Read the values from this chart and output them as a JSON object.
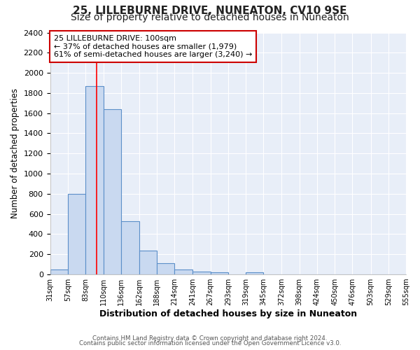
{
  "title": "25, LILLEBURNE DRIVE, NUNEATON, CV10 9SE",
  "subtitle": "Size of property relative to detached houses in Nuneaton",
  "xlabel": "Distribution of detached houses by size in Nuneaton",
  "ylabel": "Number of detached properties",
  "bin_edges": [
    31,
    57,
    83,
    110,
    136,
    162,
    188,
    214,
    241,
    267,
    293,
    319,
    345,
    372,
    398,
    424,
    450,
    476,
    503,
    529,
    555
  ],
  "bar_heights": [
    50,
    800,
    1870,
    1640,
    530,
    235,
    110,
    50,
    30,
    20,
    0,
    20,
    0,
    0,
    0,
    0,
    0,
    0,
    0,
    0
  ],
  "bar_color": "#c9d9f0",
  "bar_edge_color": "#5b8fc9",
  "red_line_x": 100,
  "ylim": [
    0,
    2400
  ],
  "yticks": [
    0,
    200,
    400,
    600,
    800,
    1000,
    1200,
    1400,
    1600,
    1800,
    2000,
    2200,
    2400
  ],
  "annotation_title": "25 LILLEBURNE DRIVE: 100sqm",
  "annotation_line1": "← 37% of detached houses are smaller (1,979)",
  "annotation_line2": "61% of semi-detached houses are larger (3,240) →",
  "annotation_box_color": "#ffffff",
  "annotation_box_edge": "#cc0000",
  "footer_line1": "Contains HM Land Registry data © Crown copyright and database right 2024.",
  "footer_line2": "Contains public sector information licensed under the Open Government Licence v3.0.",
  "fig_background": "#ffffff",
  "plot_background": "#e8eef8",
  "grid_color": "#ffffff",
  "title_fontsize": 11,
  "subtitle_fontsize": 10
}
